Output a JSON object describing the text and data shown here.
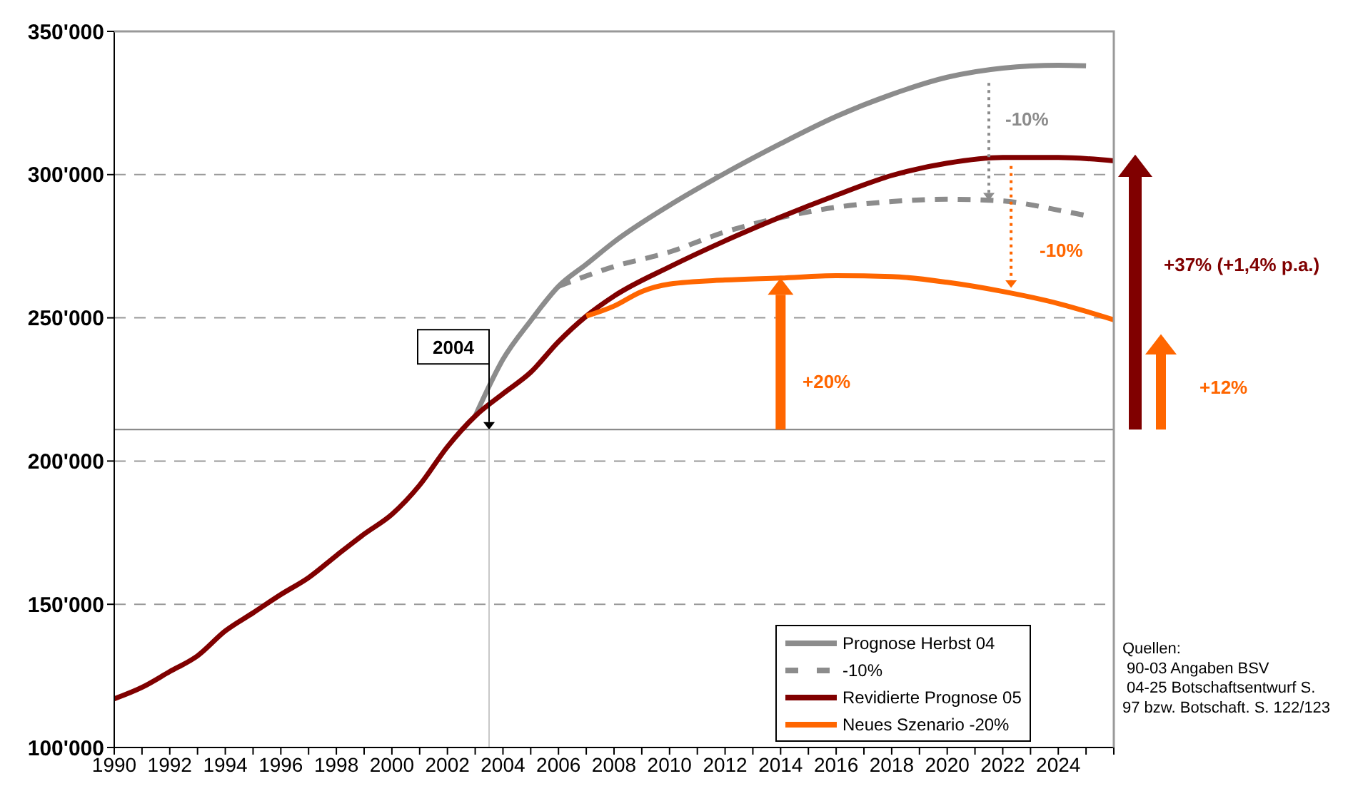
{
  "chart_data": {
    "type": "line",
    "xlim": [
      1990,
      2026
    ],
    "xticks": [
      1990,
      {
        "value": 1991,
        "label": null
      },
      1992,
      {
        "value": 1993,
        "label": null
      },
      1994,
      {
        "value": 1995,
        "label": null
      },
      1996,
      {
        "value": 1997,
        "label": null
      },
      1998,
      {
        "value": 1999,
        "label": null
      },
      2000,
      {
        "value": 2001,
        "label": null
      },
      2002,
      {
        "value": 2003,
        "label": null
      },
      2004,
      {
        "value": 2005,
        "label": null
      },
      2006,
      {
        "value": 2007,
        "label": null
      },
      2008,
      {
        "value": 2009,
        "label": null
      },
      2010,
      {
        "value": 2011,
        "label": null
      },
      2012,
      {
        "value": 2013,
        "label": null
      },
      2014,
      {
        "value": 2015,
        "label": null
      },
      2016,
      {
        "value": 2017,
        "label": null
      },
      2018,
      {
        "value": 2019,
        "label": null
      },
      2020,
      {
        "value": 2021,
        "label": null
      },
      2022,
      {
        "value": 2023,
        "label": null
      },
      2024,
      {
        "value": 2025,
        "label": null
      },
      {
        "value": 2026,
        "label": null
      }
    ],
    "ylim": [
      100000,
      350000
    ],
    "yticks": [
      {
        "value": 100000,
        "label": "100'000"
      },
      {
        "value": 150000,
        "label": "150'000"
      },
      {
        "value": 200000,
        "label": "200'000"
      },
      {
        "value": 250000,
        "label": "250'000"
      },
      {
        "value": 300000,
        "label": "300'000"
      },
      {
        "value": 350000,
        "label": "350'000"
      }
    ],
    "grid": "y",
    "legend": "bottom right",
    "marker": "none",
    "series": [
      {
        "name": "Prognose Herbst 04",
        "color": "#8c8c8c",
        "line_style": "solid",
        "x": [
          2003,
          2004,
          2005,
          2006,
          2007,
          2008,
          2010,
          2012,
          2014,
          2016,
          2018,
          2020,
          2022,
          2024,
          2025
        ],
        "values": [
          215700,
          235500,
          249000,
          261000,
          268700,
          276500,
          289300,
          300500,
          310800,
          320300,
          328000,
          334000,
          337200,
          338200,
          338000
        ]
      },
      {
        "name": "-10%",
        "color": "#8c8c8c",
        "line_style": "dashed",
        "x": [
          2006,
          2008,
          2010,
          2012,
          2014,
          2016,
          2018,
          2020,
          2022,
          2024,
          2025
        ],
        "values": [
          261000,
          267900,
          273000,
          280000,
          285000,
          288600,
          290600,
          291400,
          290800,
          287600,
          285700
        ]
      },
      {
        "name": "Revidierte Prognose 05",
        "color": "#800000",
        "line_style": "solid",
        "x": [
          1990,
          1991,
          1992,
          1993,
          1994,
          1995,
          1996,
          1997,
          1998,
          1999,
          2000,
          2001,
          2002,
          2003,
          2004,
          2005,
          2006,
          2007,
          2008,
          2010,
          2012,
          2014,
          2016,
          2018,
          2020,
          2022,
          2024,
          2026
        ],
        "values": [
          117000,
          121000,
          126500,
          132000,
          140700,
          147000,
          153400,
          159300,
          167000,
          174500,
          181400,
          191600,
          205000,
          215700,
          223500,
          231000,
          241700,
          250600,
          257600,
          267800,
          276900,
          285200,
          292800,
          299700,
          304000,
          306000,
          306000,
          304800
        ]
      },
      {
        "name": "Neues Szenario -20%",
        "color": "#ff6600",
        "line_style": "solid",
        "x": [
          2007,
          2008,
          2009,
          2010,
          2012,
          2014,
          2016,
          2018,
          2020,
          2022,
          2024,
          2026
        ],
        "values": [
          250600,
          254100,
          259200,
          261800,
          263200,
          263900,
          264700,
          264400,
          262400,
          259200,
          255000,
          249300
        ]
      }
    ],
    "ref_lines": [
      {
        "axis": "y",
        "value": 211000,
        "color": "#808080",
        "line_style": "solid"
      },
      {
        "axis": "x",
        "value": 2003.5,
        "label": "2004",
        "color": "#c8c8c8",
        "line_style": "solid"
      }
    ],
    "annotations": [
      "-10%",
      "-10%",
      "+20%",
      "+37% (+1,4% p.a.)",
      "+12%",
      "Quellen:\n 90-03 Angaben BSV\n 04-25 Botschaftsentwurf S.\n97 bzw. Botschaft. S. 122/123"
    ]
  }
}
